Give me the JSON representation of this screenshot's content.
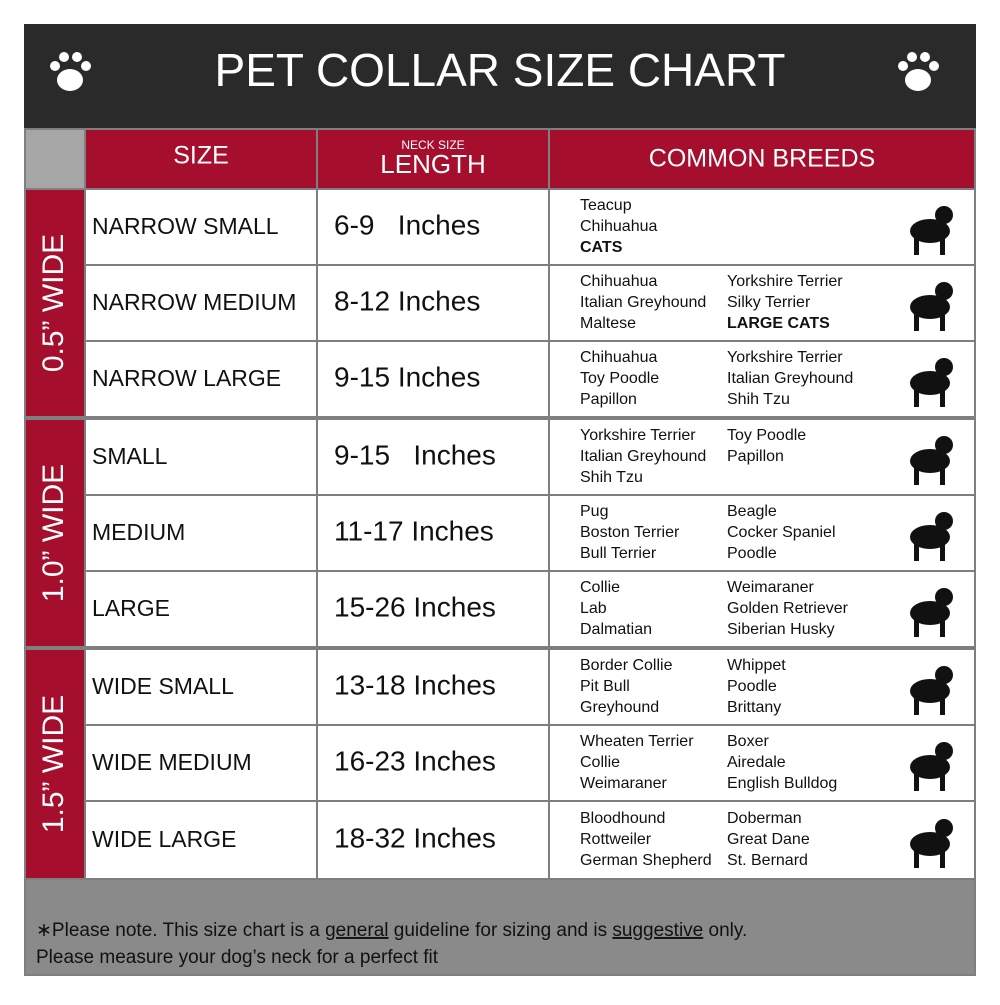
{
  "header": {
    "title": "PET COLLAR SIZE CHART"
  },
  "columns": {
    "size": "SIZE",
    "length_small": "NECK SIZE",
    "length": "LENGTH",
    "breeds": "COMMON BREEDS"
  },
  "groups": [
    {
      "label": "0.5” WIDE",
      "rows": [
        {
          "size": "NARROW SMALL",
          "length": "6-9   Inches",
          "breeds_left": [
            {
              "text": "Teacup"
            },
            {
              "text": "Chihuahua"
            },
            {
              "text": "CATS",
              "bold": true
            }
          ],
          "breeds_right": []
        },
        {
          "size": "NARROW MEDIUM",
          "length": "8-12 Inches",
          "breeds_left": [
            {
              "text": "Chihuahua"
            },
            {
              "text": "Italian Greyhound"
            },
            {
              "text": "Maltese"
            }
          ],
          "breeds_right": [
            {
              "text": "Yorkshire Terrier"
            },
            {
              "text": "Silky Terrier"
            },
            {
              "text": "LARGE CATS",
              "bold": true
            }
          ]
        },
        {
          "size": "NARROW LARGE",
          "length": "9-15 Inches",
          "breeds_left": [
            {
              "text": "Chihuahua"
            },
            {
              "text": "Toy Poodle"
            },
            {
              "text": "Papillon"
            }
          ],
          "breeds_right": [
            {
              "text": "Yorkshire Terrier"
            },
            {
              "text": "Italian Greyhound"
            },
            {
              "text": "Shih Tzu"
            }
          ]
        }
      ]
    },
    {
      "label": "1.0” WIDE",
      "rows": [
        {
          "size": "SMALL",
          "length": "9-15   Inches",
          "breeds_left": [
            {
              "text": "Yorkshire Terrier"
            },
            {
              "text": "Italian Greyhound"
            },
            {
              "text": "Shih Tzu"
            }
          ],
          "breeds_right": [
            {
              "text": "Toy Poodle"
            },
            {
              "text": "Papillon"
            }
          ]
        },
        {
          "size": "MEDIUM",
          "length": "11-17 Inches",
          "breeds_left": [
            {
              "text": "Pug"
            },
            {
              "text": "Boston Terrier"
            },
            {
              "text": "Bull Terrier"
            }
          ],
          "breeds_right": [
            {
              "text": "Beagle"
            },
            {
              "text": "Cocker Spaniel"
            },
            {
              "text": "Poodle"
            }
          ]
        },
        {
          "size": "LARGE",
          "length": "15-26 Inches",
          "breeds_left": [
            {
              "text": "Collie"
            },
            {
              "text": "Lab"
            },
            {
              "text": "Dalmatian"
            }
          ],
          "breeds_right": [
            {
              "text": "Weimaraner"
            },
            {
              "text": "Golden Retriever"
            },
            {
              "text": "Siberian Husky"
            }
          ]
        }
      ]
    },
    {
      "label": "1.5” WIDE",
      "rows": [
        {
          "size": "WIDE SMALL",
          "length": "13-18 Inches",
          "breeds_left": [
            {
              "text": "Border Collie"
            },
            {
              "text": "Pit Bull"
            },
            {
              "text": "Greyhound"
            }
          ],
          "breeds_right": [
            {
              "text": "Whippet"
            },
            {
              "text": "Poodle"
            },
            {
              "text": "Brittany"
            }
          ]
        },
        {
          "size": "WIDE MEDIUM",
          "length": "16-23 Inches",
          "breeds_left": [
            {
              "text": "Wheaten Terrier"
            },
            {
              "text": "Collie"
            },
            {
              "text": "Weimaraner"
            }
          ],
          "breeds_right": [
            {
              "text": "Boxer"
            },
            {
              "text": "Airedale"
            },
            {
              "text": "English Bulldog"
            }
          ]
        },
        {
          "size": "WIDE LARGE",
          "length": "18-32 Inches",
          "breeds_left": [
            {
              "text": "Bloodhound"
            },
            {
              "text": "Rottweiler"
            },
            {
              "text": "German Shepherd"
            }
          ],
          "breeds_right": [
            {
              "text": "Doberman"
            },
            {
              "text": "Great Dane"
            },
            {
              "text": "St. Bernard"
            }
          ]
        }
      ]
    }
  ],
  "note": {
    "line1": [
      {
        "text": "∗Please note. This size chart is a "
      },
      {
        "text": "general",
        "underline": true
      },
      {
        "text": " guideline for sizing and is "
      },
      {
        "text": "suggestive",
        "underline": true
      },
      {
        "text": " only."
      }
    ],
    "line2": "Please measure your dog’s neck for a perfect fit"
  }
}
